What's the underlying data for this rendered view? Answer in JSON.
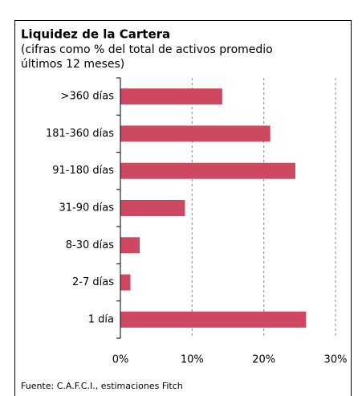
{
  "chart_data": {
    "type": "bar",
    "orientation": "horizontal",
    "title": "Liquidez de la Cartera",
    "subtitle": [
      "(cifras como % del total de activos promedio",
      "últimos 12 meses)"
    ],
    "categories": [
      ">360 días",
      "181-360 días",
      "91-180 días",
      "31-90 días",
      "8-30 días",
      "2-7 días",
      "1 día"
    ],
    "values": [
      14.2,
      20.9,
      24.4,
      9.0,
      2.7,
      1.4,
      25.9
    ],
    "color": "#cf4862",
    "xlim": [
      0,
      30
    ],
    "xticks": [
      {
        "value": 0,
        "label": "0%"
      },
      {
        "value": 10,
        "label": "10%"
      },
      {
        "value": 20,
        "label": "20%"
      },
      {
        "value": 30,
        "label": "30%"
      }
    ],
    "grid": true,
    "source": "Fuente: C.A.F.C.I.,   estimaciones Fitch"
  }
}
